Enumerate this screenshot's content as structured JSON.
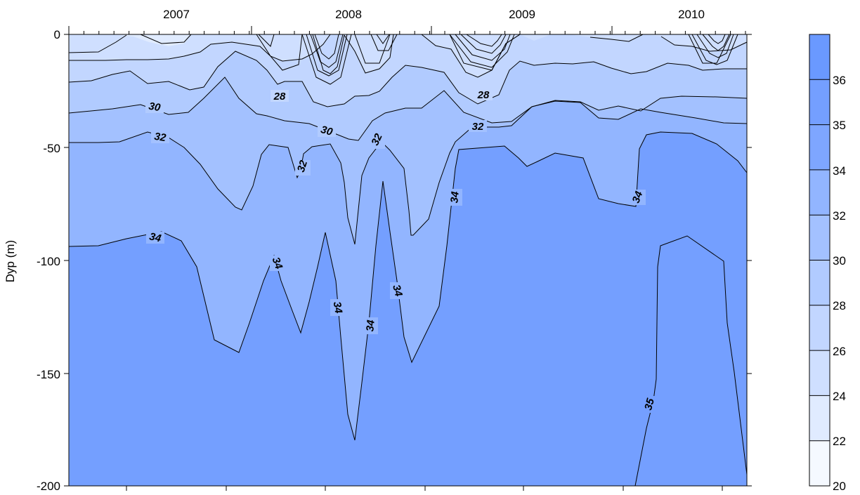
{
  "chart_data": {
    "type": "contour",
    "ylabel": "Dyp (m)",
    "ylim": [
      -200,
      0
    ],
    "y_ticks": [
      "0",
      "-50",
      "-100",
      "-150",
      "-200"
    ],
    "top_year_labels": [
      "2007",
      "2008",
      "2009",
      "2010"
    ],
    "colorbar": {
      "levels": [
        20,
        22,
        24,
        26,
        28,
        30,
        32,
        34,
        35,
        36
      ],
      "tick_labels": [
        "20",
        "22",
        "24",
        "26",
        "28",
        "30",
        "32",
        "34",
        "35",
        "36"
      ],
      "colors": [
        "#f5f9ff",
        "#e0ebff",
        "#cfdfff",
        "#c2d6ff",
        "#b1cbff",
        "#a3c1ff",
        "#92b5ff",
        "#7ea6ff",
        "#749fff",
        "#6a99ff"
      ]
    },
    "contour_labels": [
      {
        "text": "28"
      },
      {
        "text": "28"
      },
      {
        "text": "30"
      },
      {
        "text": "30"
      },
      {
        "text": "32"
      },
      {
        "text": "32"
      },
      {
        "text": "32"
      },
      {
        "text": "32"
      },
      {
        "text": "34"
      },
      {
        "text": "34"
      },
      {
        "text": "34"
      },
      {
        "text": "34"
      },
      {
        "text": "34"
      },
      {
        "text": "34"
      },
      {
        "text": "34"
      },
      {
        "text": "35"
      }
    ]
  }
}
